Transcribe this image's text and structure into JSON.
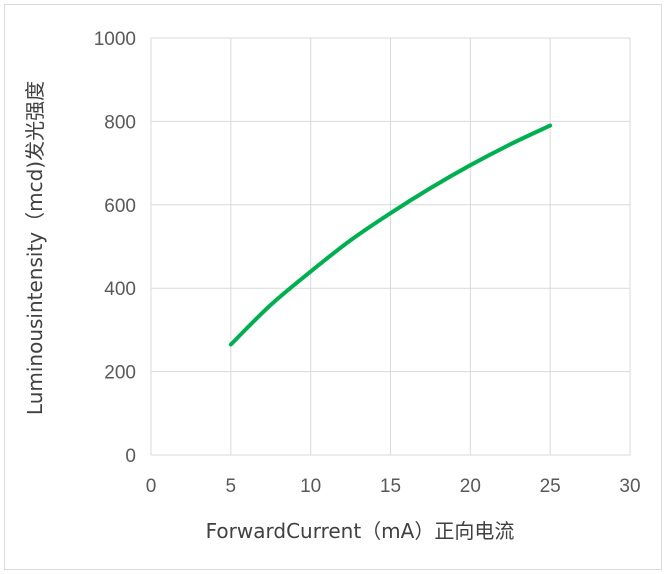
{
  "chart_data": {
    "type": "line",
    "xlabel": "ForwardCurrent（mA）正向电流",
    "ylabel": "Luminousintensity（mcd)发光强度",
    "xlim": [
      0,
      30
    ],
    "ylim": [
      0,
      1000
    ],
    "x_ticks": [
      0,
      5,
      10,
      15,
      20,
      25,
      30
    ],
    "y_ticks": [
      0,
      200,
      400,
      600,
      800,
      1000
    ],
    "x_tick_labels": [
      "0",
      "5",
      "10",
      "15",
      "20",
      "25",
      "30"
    ],
    "y_tick_labels": [
      "0",
      "200",
      "400",
      "600",
      "800",
      "1000"
    ],
    "grid": "vertical and horizontal",
    "series": [
      {
        "x": [
          5,
          7.5,
          10,
          12.5,
          15,
          17.5,
          20,
          22.5,
          25
        ],
        "y": [
          265,
          360,
          440,
          515,
          580,
          640,
          695,
          745,
          790
        ],
        "color": "#00b050"
      }
    ]
  }
}
